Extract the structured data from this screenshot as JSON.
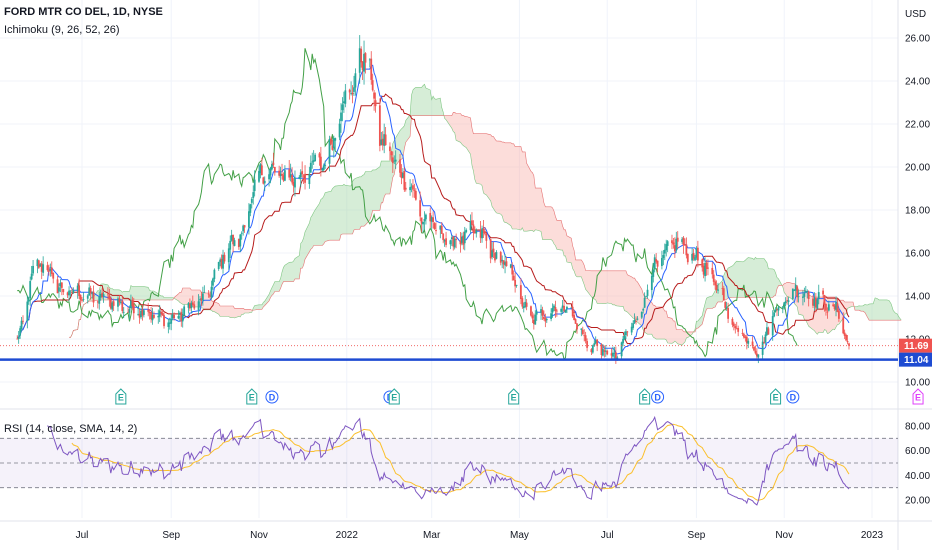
{
  "symbol": {
    "title": "FORD MTR CO DEL, 1D, NYSE",
    "currency": "USD"
  },
  "ichimoku": {
    "label": "Ichimoku (9, 26, 52, 26)"
  },
  "rsi": {
    "label": "RSI (14, close, SMA, 14, 2)"
  },
  "colors": {
    "up": "#26a69a",
    "down": "#ef5350",
    "conversion": "#2962ff",
    "base": "#b71c1c",
    "lagging": "#43a047",
    "cloud_up": "#a5d6a7",
    "cloud_down": "#f8b3ad",
    "support": "#1e4bd2",
    "rsi_line": "#7e57c2",
    "rsi_ma": "#fbc02d",
    "last_price": "#ef5350"
  },
  "chart_data": [
    {
      "type": "candlestick",
      "title": "FORD MTR CO DEL, 1D, NYSE",
      "x_ticks": [
        "Jul",
        "Sep",
        "Nov",
        "2022",
        "Mar",
        "May",
        "Jul",
        "Sep",
        "Nov",
        "2023"
      ],
      "y_ticks": [
        "10.00",
        "12.00",
        "14.00",
        "16.00",
        "18.00",
        "20.00",
        "22.00",
        "24.00",
        "26.00"
      ],
      "ylim": [
        10,
        26.3
      ],
      "price_anchors": [
        {
          "t": "2021-05-15",
          "close": 11.8
        },
        {
          "t": "2021-06-01",
          "close": 15.5
        },
        {
          "t": "2021-06-20",
          "close": 14.2
        },
        {
          "t": "2021-07-15",
          "close": 13.9
        },
        {
          "t": "2021-08-05",
          "close": 13.4
        },
        {
          "t": "2021-09-01",
          "close": 12.9
        },
        {
          "t": "2021-09-20",
          "close": 13.7
        },
        {
          "t": "2021-10-15",
          "close": 16.5
        },
        {
          "t": "2021-11-05",
          "close": 19.8
        },
        {
          "t": "2021-11-25",
          "close": 19.5
        },
        {
          "t": "2021-12-15",
          "close": 20.2
        },
        {
          "t": "2022-01-03",
          "close": 23.5
        },
        {
          "t": "2022-01-13",
          "close": 25.2
        },
        {
          "t": "2022-01-27",
          "close": 21.0
        },
        {
          "t": "2022-02-10",
          "close": 19.5
        },
        {
          "t": "2022-02-25",
          "close": 17.5
        },
        {
          "t": "2022-03-15",
          "close": 16.5
        },
        {
          "t": "2022-04-01",
          "close": 17.0
        },
        {
          "t": "2022-04-20",
          "close": 15.5
        },
        {
          "t": "2022-05-10",
          "close": 13.0
        },
        {
          "t": "2022-06-01",
          "close": 13.5
        },
        {
          "t": "2022-06-20",
          "close": 11.7
        },
        {
          "t": "2022-07-06",
          "close": 11.2
        },
        {
          "t": "2022-07-20",
          "close": 12.8
        },
        {
          "t": "2022-08-05",
          "close": 15.5
        },
        {
          "t": "2022-08-17",
          "close": 16.5
        },
        {
          "t": "2022-09-01",
          "close": 15.8
        },
        {
          "t": "2022-09-15",
          "close": 14.5
        },
        {
          "t": "2022-09-28",
          "close": 12.5
        },
        {
          "t": "2022-10-14",
          "close": 11.5
        },
        {
          "t": "2022-10-28",
          "close": 13.5
        },
        {
          "t": "2022-11-10",
          "close": 14.3
        },
        {
          "t": "2022-11-25",
          "close": 13.8
        },
        {
          "t": "2022-12-08",
          "close": 13.3
        },
        {
          "t": "2022-12-16",
          "close": 11.69
        }
      ],
      "last_price": "11.69",
      "support_price": "11.04",
      "events": [
        {
          "label": "E",
          "t": "2021-07-28"
        },
        {
          "label": "E",
          "t": "2021-10-27"
        },
        {
          "label": "D",
          "t": "2021-11-10"
        },
        {
          "label": "D",
          "t": "2022-01-31"
        },
        {
          "label": "E",
          "t": "2022-02-03"
        },
        {
          "label": "E",
          "t": "2022-04-27"
        },
        {
          "label": "E",
          "t": "2022-07-27"
        },
        {
          "label": "D",
          "t": "2022-08-05"
        },
        {
          "label": "E",
          "t": "2022-10-26"
        },
        {
          "label": "D",
          "t": "2022-11-07"
        },
        {
          "label": "E",
          "t": "2023-02-02"
        }
      ],
      "indicators": [
        "Tenkan-sen",
        "Kijun-sen",
        "Chikou span",
        "Kumo"
      ]
    },
    {
      "type": "line",
      "title": "RSI (14, close, SMA, 14, 2)",
      "y_ticks": [
        "20.00",
        "40.00",
        "60.00",
        "80.00"
      ],
      "ylim": [
        17,
        87
      ],
      "bands": [
        70,
        50,
        30
      ]
    }
  ]
}
